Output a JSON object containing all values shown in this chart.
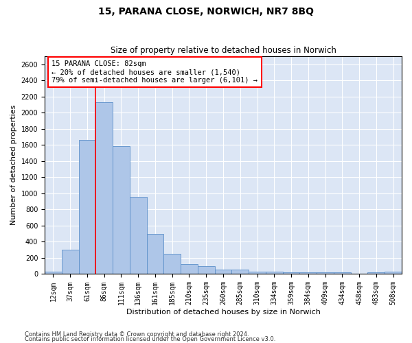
{
  "title1": "15, PARANA CLOSE, NORWICH, NR7 8BQ",
  "title2": "Size of property relative to detached houses in Norwich",
  "xlabel": "Distribution of detached houses by size in Norwich",
  "ylabel": "Number of detached properties",
  "categories": [
    "12sqm",
    "37sqm",
    "61sqm",
    "86sqm",
    "111sqm",
    "136sqm",
    "161sqm",
    "185sqm",
    "210sqm",
    "235sqm",
    "260sqm",
    "285sqm",
    "310sqm",
    "334sqm",
    "359sqm",
    "384sqm",
    "409sqm",
    "434sqm",
    "458sqm",
    "483sqm",
    "508sqm"
  ],
  "values": [
    30,
    300,
    1660,
    2130,
    1590,
    960,
    500,
    250,
    120,
    100,
    55,
    55,
    30,
    30,
    20,
    20,
    20,
    20,
    5,
    20,
    30
  ],
  "bar_color": "#aec6e8",
  "bar_edge_color": "#5b8fc9",
  "vline_x_idx": 3,
  "vline_color": "red",
  "annotation_text": "15 PARANA CLOSE: 82sqm\n← 20% of detached houses are smaller (1,540)\n79% of semi-detached houses are larger (6,101) →",
  "annotation_box_color": "white",
  "annotation_box_edge_color": "red",
  "footer1": "Contains HM Land Registry data © Crown copyright and database right 2024.",
  "footer2": "Contains public sector information licensed under the Open Government Licence v3.0.",
  "ylim": [
    0,
    2700
  ],
  "plot_background": "#dce6f5",
  "title1_fontsize": 10,
  "title2_fontsize": 8.5,
  "xlabel_fontsize": 8,
  "ylabel_fontsize": 8,
  "tick_fontsize": 7,
  "annot_fontsize": 7.5,
  "footer_fontsize": 6
}
